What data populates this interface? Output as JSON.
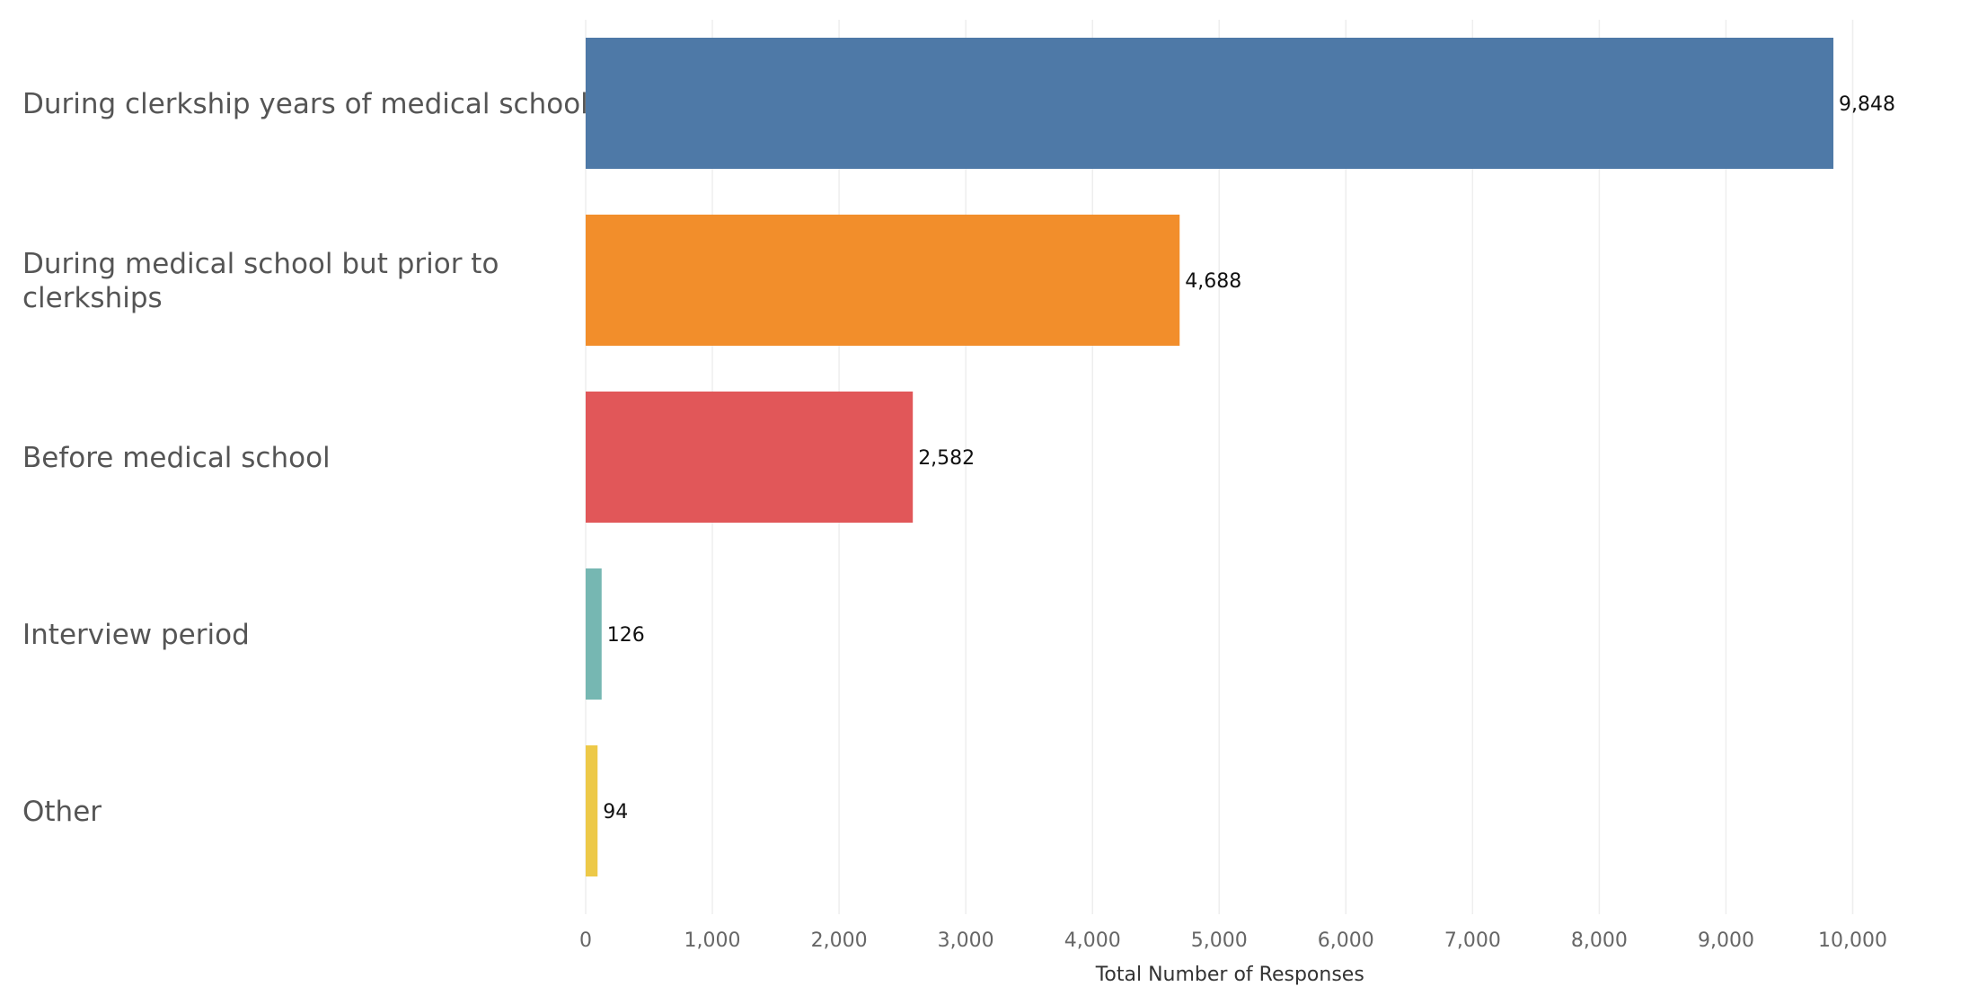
{
  "chart_data": {
    "type": "bar",
    "orientation": "horizontal",
    "categories": [
      [
        "During clerkship years of medical school"
      ],
      [
        "During medical school but prior to",
        "clerkships"
      ],
      [
        "Before medical school"
      ],
      [
        "Interview period"
      ],
      [
        "Other"
      ]
    ],
    "values": [
      9848,
      4688,
      2582,
      126,
      94
    ],
    "value_labels": [
      "9,848",
      "4,688",
      "2,582",
      "126",
      "94"
    ],
    "colors": [
      "#4e79a7",
      "#f28e2b",
      "#e15759",
      "#76b7b2",
      "#edc948"
    ],
    "xlabel": "Total Number of Responses",
    "ylabel": "",
    "xlim": [
      0,
      10800
    ],
    "xticks": [
      0,
      1000,
      2000,
      3000,
      4000,
      5000,
      6000,
      7000,
      8000,
      9000,
      10000
    ],
    "xtick_labels": [
      "0",
      "1,000",
      "2,000",
      "3,000",
      "4,000",
      "5,000",
      "6,000",
      "7,000",
      "8,000",
      "9,000",
      "10,000"
    ],
    "grid": "vertical"
  }
}
